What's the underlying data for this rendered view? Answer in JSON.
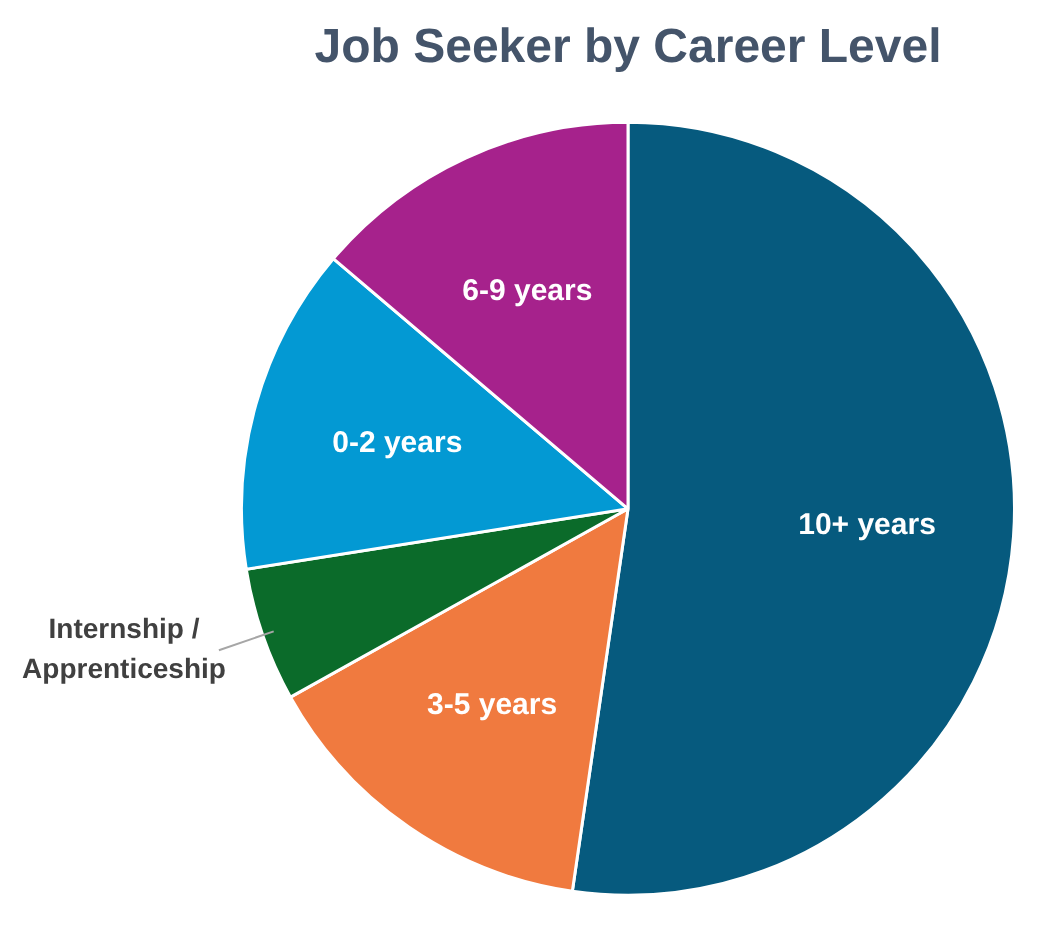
{
  "chart_data": {
    "type": "pie",
    "title": "Job Seeker by Career Level",
    "categories": [
      "10+ years",
      "3-5 years",
      "Internship / Apprenticeship",
      "0-2 years",
      "6-9 years"
    ],
    "values": [
      52.3,
      14.6,
      5.6,
      13.7,
      13.8
    ],
    "colors": [
      "#065a7e",
      "#f07a3f",
      "#0b6b2a",
      "#0399d3",
      "#a6228c"
    ],
    "legend": false
  }
}
